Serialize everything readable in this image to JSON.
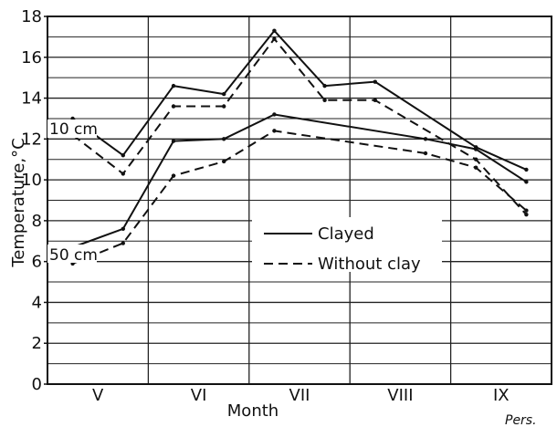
{
  "chart_data": {
    "type": "line",
    "title": "",
    "xlabel": "Month",
    "ylabel": "Temperature,°C",
    "categories": [
      "V",
      "VI",
      "VII",
      "VIII",
      "IX"
    ],
    "x": [
      0.25,
      0.75,
      1.25,
      1.75,
      2.25,
      2.75,
      3.25,
      3.75,
      4.25,
      4.75
    ],
    "ylim": [
      0,
      18
    ],
    "yticks": [
      "0",
      "2",
      "4",
      "6",
      "8",
      "10",
      "12",
      "14",
      "16",
      "18"
    ],
    "grid": true,
    "legend": {
      "position": "center-right",
      "entries": [
        {
          "label": "Clayed",
          "style": "solid"
        },
        {
          "label": "Without clay",
          "style": "dashed"
        }
      ]
    },
    "annotations": [
      "10 cm",
      "50 cm"
    ],
    "series": [
      {
        "depth": "10 cm",
        "style": "solid",
        "values": [
          13.0,
          11.2,
          14.6,
          14.2,
          17.3,
          14.6,
          14.8,
          null,
          11.6,
          10.5
        ]
      },
      {
        "depth": "10 cm",
        "style": "dashed",
        "values": [
          12.2,
          10.3,
          13.6,
          13.6,
          16.9,
          13.9,
          13.9,
          null,
          11.0,
          8.3
        ]
      },
      {
        "depth": "50 cm",
        "style": "solid",
        "values": [
          6.7,
          7.6,
          11.9,
          12.0,
          13.2,
          null,
          null,
          12.0,
          11.5,
          9.9
        ]
      },
      {
        "depth": "50 cm",
        "style": "dashed",
        "values": [
          5.9,
          6.9,
          10.2,
          10.9,
          12.4,
          null,
          null,
          11.3,
          10.6,
          8.5
        ]
      }
    ]
  },
  "signature": "Pers."
}
